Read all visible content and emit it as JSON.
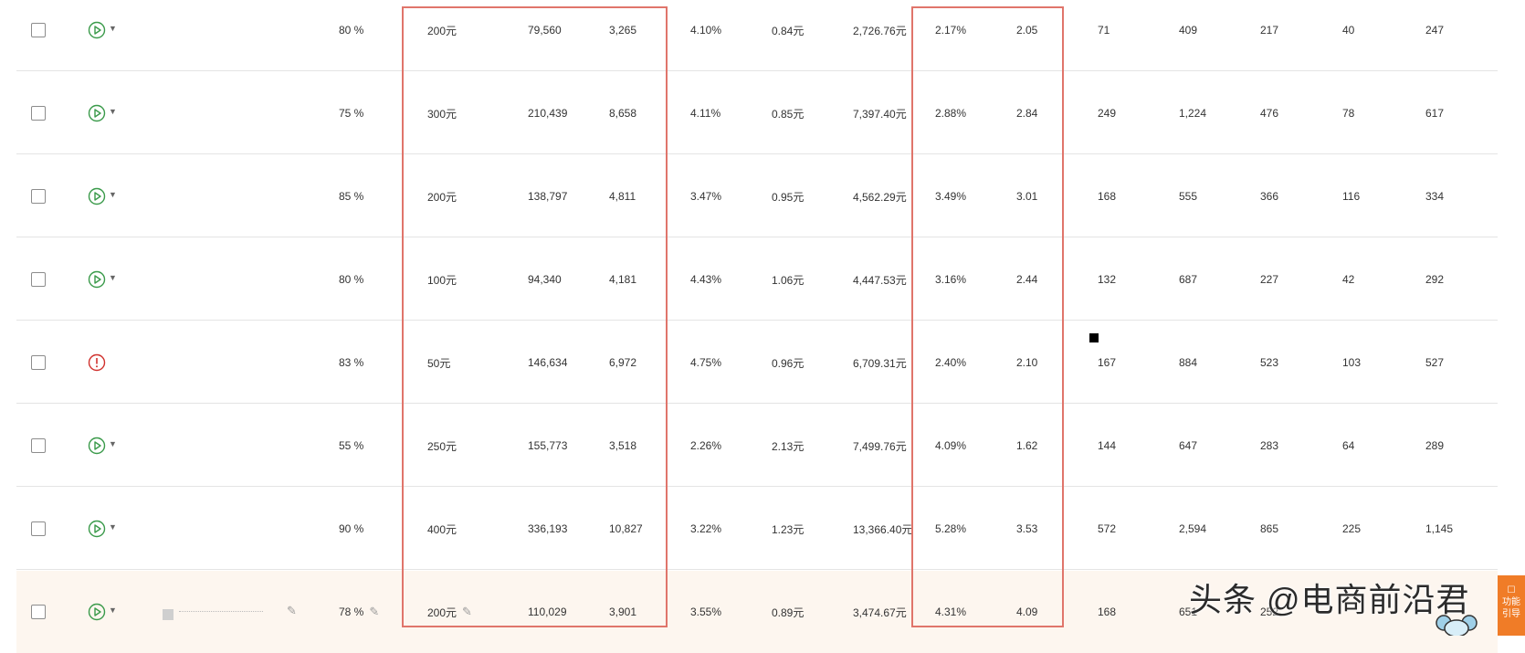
{
  "rows": [
    {
      "pct": "80 %",
      "budget": "200元",
      "impressions": "79,560",
      "clicks": "3,265",
      "ctr": "4.10%",
      "cpc": "0.84元",
      "cost": "2,726.76元",
      "rate": "2.17%",
      "roi": "2.05",
      "c1": "71",
      "c2": "409",
      "c3": "217",
      "c4": "40",
      "c5": "247",
      "status": "play"
    },
    {
      "pct": "75 %",
      "budget": "300元",
      "impressions": "210,439",
      "clicks": "8,658",
      "ctr": "4.11%",
      "cpc": "0.85元",
      "cost": "7,397.40元",
      "rate": "2.88%",
      "roi": "2.84",
      "c1": "249",
      "c2": "1,224",
      "c3": "476",
      "c4": "78",
      "c5": "617",
      "status": "play"
    },
    {
      "pct": "85 %",
      "budget": "200元",
      "impressions": "138,797",
      "clicks": "4,811",
      "ctr": "3.47%",
      "cpc": "0.95元",
      "cost": "4,562.29元",
      "rate": "3.49%",
      "roi": "3.01",
      "c1": "168",
      "c2": "555",
      "c3": "366",
      "c4": "116",
      "c5": "334",
      "status": "play"
    },
    {
      "pct": "80 %",
      "budget": "100元",
      "impressions": "94,340",
      "clicks": "4,181",
      "ctr": "4.43%",
      "cpc": "1.06元",
      "cost": "4,447.53元",
      "rate": "3.16%",
      "roi": "2.44",
      "c1": "132",
      "c2": "687",
      "c3": "227",
      "c4": "42",
      "c5": "292",
      "status": "play"
    },
    {
      "pct": "83 %",
      "budget": "50元",
      "impressions": "146,634",
      "clicks": "6,972",
      "ctr": "4.75%",
      "cpc": "0.96元",
      "cost": "6,709.31元",
      "rate": "2.40%",
      "roi": "2.10",
      "c1": "167",
      "c2": "884",
      "c3": "523",
      "c4": "103",
      "c5": "527",
      "status": "warning"
    },
    {
      "pct": "55 %",
      "budget": "250元",
      "impressions": "155,773",
      "clicks": "3,518",
      "ctr": "2.26%",
      "cpc": "2.13元",
      "cost": "7,499.76元",
      "rate": "4.09%",
      "roi": "1.62",
      "c1": "144",
      "c2": "647",
      "c3": "283",
      "c4": "64",
      "c5": "289",
      "status": "play"
    },
    {
      "pct": "90 %",
      "budget": "400元",
      "impressions": "336,193",
      "clicks": "10,827",
      "ctr": "3.22%",
      "cpc": "1.23元",
      "cost": "13,366.40元",
      "rate": "5.28%",
      "roi": "3.53",
      "c1": "572",
      "c2": "2,594",
      "c3": "865",
      "c4": "225",
      "c5": "1,145",
      "status": "play"
    },
    {
      "pct": "78 %",
      "budget": "200元",
      "impressions": "110,029",
      "clicks": "3,901",
      "ctr": "3.55%",
      "cpc": "0.89元",
      "cost": "3,474.67元",
      "rate": "4.31%",
      "roi": "4.09",
      "c1": "168",
      "c2": "651",
      "c3": "252",
      "c4": "",
      "c5": "",
      "status": "play"
    }
  ],
  "watermark": "头条 @电商前沿君",
  "help_widget": {
    "line1": "功能",
    "line2": "引导"
  },
  "colors": {
    "play": "#3a9a4a",
    "warning": "#d0312d",
    "highlight_box": "#e0756b"
  }
}
